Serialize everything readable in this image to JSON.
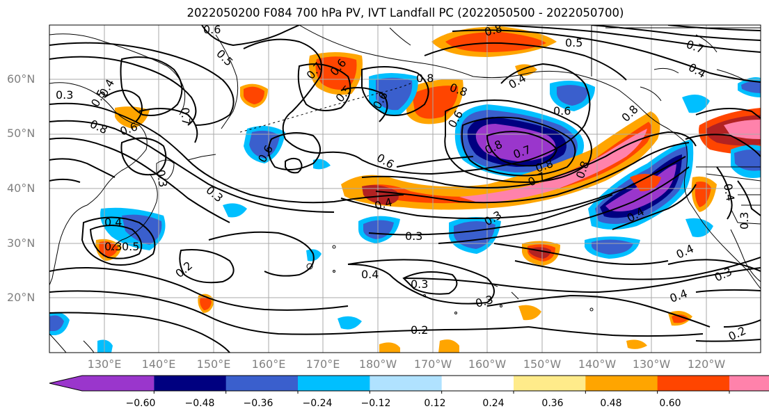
{
  "title": "2022050200 F084 700 hPa PV, IVT Landfall PC (2022050500 - 2022050700)",
  "lat_labels": [
    "60°N",
    "50°N",
    "40°N",
    "30°N",
    "20°N"
  ],
  "lon_labels": [
    "130°E",
    "140°E",
    "150°E",
    "160°E",
    "170°E",
    "180°W",
    "170°W",
    "160°W",
    "150°W",
    "140°W",
    "130°W",
    "120°W"
  ],
  "colorbar": {
    "colors": [
      "#9a36cc",
      "#000080",
      "#3a5fcd",
      "#00bfff",
      "#b0e2ff",
      "#ffffff",
      "#ffeb8a",
      "#ffa500",
      "#ff4500",
      "#b22222",
      "#ff82ab"
    ],
    "tick_labels": [
      "−0.60",
      "−0.48",
      "−0.36",
      "−0.24",
      "−0.12",
      "0.12",
      "0.24",
      "0.36",
      "0.48",
      "0.60"
    ]
  },
  "contour_labels": [
    "0.6",
    "0.5",
    "0.8",
    "0.7",
    "0.5",
    "0.4",
    "0.7",
    "0.6",
    "0.5",
    "0.8",
    "0.6",
    "0.4",
    "0.8",
    "0.6",
    "0.8",
    "0.7",
    "0.3",
    "0.5",
    "0.4",
    "0.8",
    "0.6",
    "0.7",
    "0.3",
    "0.6",
    "0.3",
    "0.4",
    "0.6",
    "0.3",
    "0.6",
    "0.8",
    "0.8",
    "0.7",
    "0.8",
    "0.4",
    "0.4",
    "0.3",
    "0.3",
    "0.2",
    "0.4",
    "0.3",
    "0.3",
    "0.2",
    "0.4",
    "0.4",
    "0.3",
    "0.4",
    "0.2",
    "0.3",
    "0.5"
  ]
}
